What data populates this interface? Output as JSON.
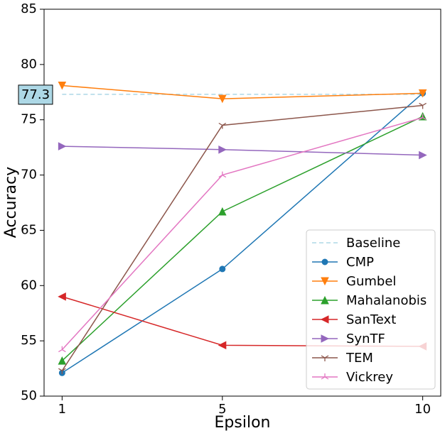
{
  "chart_data": {
    "type": "line",
    "xlabel": "Epsilon",
    "ylabel": "Accuracy",
    "x": [
      1,
      5,
      10
    ],
    "xlim": [
      0.55,
      10.45
    ],
    "xticks": [
      1,
      5,
      10
    ],
    "ylim": [
      50,
      85
    ],
    "yticks": [
      50,
      55,
      60,
      65,
      70,
      75,
      80,
      85
    ],
    "annotation": "77.3",
    "legend": "lower right",
    "series": [
      {
        "name": "Baseline",
        "color": "#add8e6",
        "values": [
          77.3,
          77.3,
          77.3
        ],
        "dashed": true
      },
      {
        "name": "CMP",
        "color": "#1f77b4",
        "marker": "circle",
        "values": [
          52.1,
          61.5,
          77.4
        ]
      },
      {
        "name": "Gumbel",
        "color": "#ff7f0e",
        "marker": "tri-down",
        "values": [
          78.1,
          76.9,
          77.4
        ]
      },
      {
        "name": "Mahalanobis",
        "color": "#2ca02c",
        "marker": "tri-up",
        "values": [
          53.2,
          66.7,
          75.3
        ]
      },
      {
        "name": "SanText",
        "color": "#d62728",
        "marker": "tri-left",
        "values": [
          59.0,
          54.6,
          54.5
        ]
      },
      {
        "name": "SynTF",
        "color": "#9467bd",
        "marker": "tri-right",
        "values": [
          72.6,
          72.3,
          71.8
        ]
      },
      {
        "name": "TEM",
        "color": "#8c564b",
        "marker": "y-down",
        "values": [
          52.3,
          74.5,
          76.3
        ]
      },
      {
        "name": "Vickrey",
        "color": "#e377c2",
        "marker": "y-up",
        "values": [
          54.2,
          70.0,
          75.2
        ]
      }
    ]
  }
}
